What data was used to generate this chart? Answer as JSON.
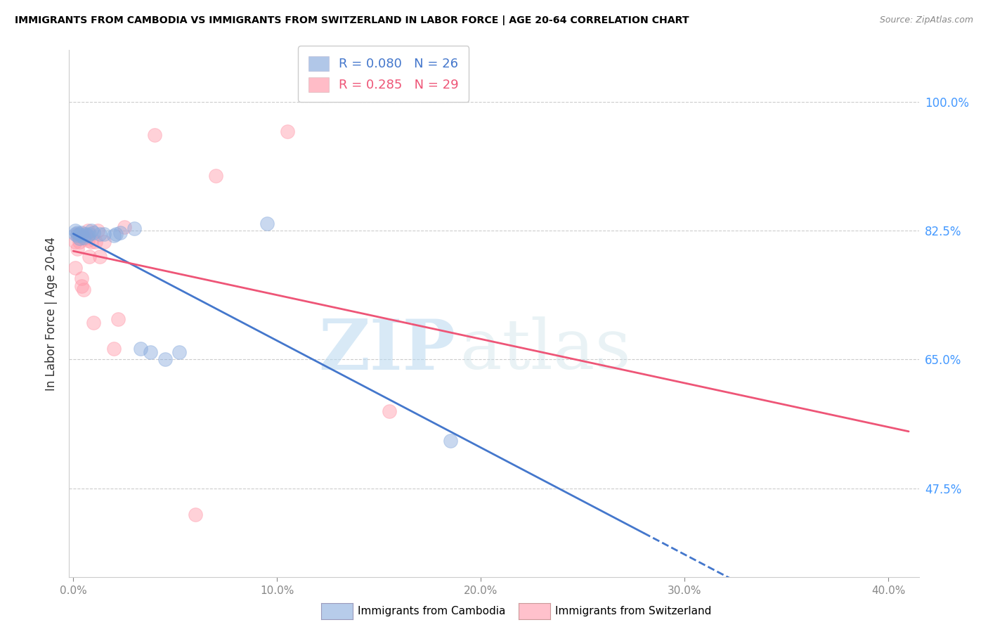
{
  "title": "IMMIGRANTS FROM CAMBODIA VS IMMIGRANTS FROM SWITZERLAND IN LABOR FORCE | AGE 20-64 CORRELATION CHART",
  "source": "Source: ZipAtlas.com",
  "ylabel": "In Labor Force | Age 20-64",
  "ylim": [
    0.355,
    1.07
  ],
  "xlim": [
    -0.002,
    0.415
  ],
  "r_cambodia": 0.08,
  "n_cambodia": 26,
  "r_switzerland": 0.285,
  "n_switzerland": 29,
  "color_cambodia": "#88aadd",
  "color_switzerland": "#ff99aa",
  "trend_color_cambodia": "#4477cc",
  "trend_color_switzerland": "#ee5577",
  "legend_label_cambodia": "Immigrants from Cambodia",
  "legend_label_switzerland": "Immigrants from Switzerland",
  "watermark_zip": "ZIP",
  "watermark_atlas": "atlas",
  "ytick_positions": [
    0.475,
    0.65,
    0.825,
    1.0
  ],
  "ytick_labels": [
    "47.5%",
    "65.0%",
    "82.5%",
    "100.0%"
  ],
  "xtick_positions": [
    0.0,
    0.1,
    0.2,
    0.3,
    0.4
  ],
  "xtick_labels": [
    "0.0%",
    "10.0%",
    "20.0%",
    "30.0%",
    "40.0%"
  ],
  "cambodia_x": [
    0.001,
    0.001,
    0.002,
    0.002,
    0.003,
    0.003,
    0.004,
    0.004,
    0.005,
    0.006,
    0.007,
    0.008,
    0.009,
    0.01,
    0.013,
    0.015,
    0.02,
    0.021,
    0.023,
    0.03,
    0.033,
    0.038,
    0.045,
    0.052,
    0.095,
    0.185
  ],
  "cambodia_y": [
    0.82,
    0.825,
    0.818,
    0.822,
    0.815,
    0.82,
    0.818,
    0.822,
    0.816,
    0.82,
    0.818,
    0.82,
    0.825,
    0.822,
    0.82,
    0.82,
    0.818,
    0.82,
    0.822,
    0.828,
    0.665,
    0.66,
    0.65,
    0.66,
    0.835,
    0.54
  ],
  "switzerland_x": [
    0.001,
    0.001,
    0.002,
    0.002,
    0.003,
    0.003,
    0.004,
    0.004,
    0.005,
    0.005,
    0.006,
    0.006,
    0.007,
    0.007,
    0.008,
    0.009,
    0.01,
    0.011,
    0.012,
    0.013,
    0.015,
    0.02,
    0.022,
    0.025,
    0.04,
    0.06,
    0.07,
    0.105,
    0.155
  ],
  "switzerland_y": [
    0.775,
    0.81,
    0.8,
    0.82,
    0.81,
    0.815,
    0.76,
    0.75,
    0.745,
    0.82,
    0.815,
    0.818,
    0.812,
    0.825,
    0.79,
    0.81,
    0.7,
    0.81,
    0.825,
    0.79,
    0.81,
    0.665,
    0.705,
    0.83,
    0.955,
    0.44,
    0.9,
    0.96,
    0.58
  ],
  "trend_x_solid_end": 0.28,
  "trend_x_dash_end": 0.41,
  "trend_blue_y0": 0.79,
  "trend_blue_slope": 0.118,
  "trend_pink_y0": 0.77,
  "trend_pink_slope": 0.39
}
